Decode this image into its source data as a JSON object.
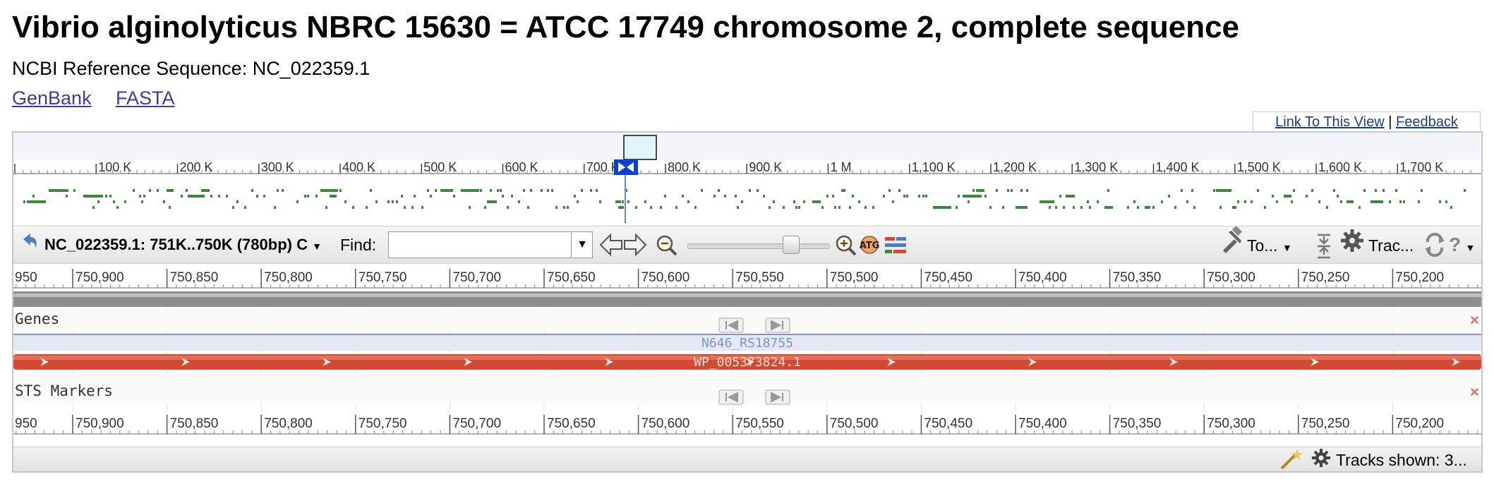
{
  "page": {
    "title": "Vibrio alginolyticus NBRC 15630 = ATCC 17749 chromosome 2, complete sequence",
    "refseq_label": "NCBI Reference Sequence: NC_022359.1",
    "links": {
      "genbank": "GenBank",
      "fasta": "FASTA"
    }
  },
  "view_links": {
    "link": "Link To This View",
    "separator": "|",
    "feedback": "Feedback"
  },
  "overview": {
    "ticks": [
      {
        "label": "",
        "k": 0
      },
      {
        "label": "100 K",
        "k": 100
      },
      {
        "label": "200 K",
        "k": 200
      },
      {
        "label": "300 K",
        "k": 300
      },
      {
        "label": "400 K",
        "k": 400
      },
      {
        "label": "500 K",
        "k": 500
      },
      {
        "label": "600 K",
        "k": 600
      },
      {
        "label": "700 K",
        "k": 700
      },
      {
        "label": "800 K",
        "k": 800
      },
      {
        "label": "900 K",
        "k": 900
      },
      {
        "label": "1 M",
        "k": 1000
      },
      {
        "label": "1,100 K",
        "k": 1100
      },
      {
        "label": "1,200 K",
        "k": 1200
      },
      {
        "label": "1,300 K",
        "k": 1300
      },
      {
        "label": "1,400 K",
        "k": 1400
      },
      {
        "label": "1,500 K",
        "k": 1500
      },
      {
        "label": "1,600 K",
        "k": 1600
      },
      {
        "label": "1,700 K",
        "k": 1700
      }
    ],
    "visible_position_k": 750.5,
    "marker_color": "#0b3fd1",
    "gene_color": "#3b8a3b"
  },
  "toolbar": {
    "location": "NC_022359.1: 751K..750K (780bp) C",
    "find_label": "Find:",
    "find_value": "",
    "tools_label": "To...",
    "tracks_label": "Trac...",
    "zoom_level": 0.8
  },
  "ruler": {
    "edge_label": "950",
    "labels": [
      "750,900",
      "750,850",
      "750,800",
      "750,750",
      "750,700",
      "750,650",
      "750,600",
      "750,550",
      "750,500",
      "750,450",
      "750,400",
      "750,350",
      "750,300",
      "750,250",
      "750,200"
    ]
  },
  "tracks": {
    "genes": {
      "label": "Genes",
      "gene_name": "N646_RS18755",
      "protein_name": "WP_005373824.1",
      "color": "#d24a33"
    },
    "sts": {
      "label": "STS Markers"
    }
  },
  "status": {
    "tracks_shown": "Tracks shown: 3..."
  },
  "colors": {
    "link": "#3d3d9e",
    "accent": "#0b3fd1",
    "gene": "#d24a33"
  }
}
